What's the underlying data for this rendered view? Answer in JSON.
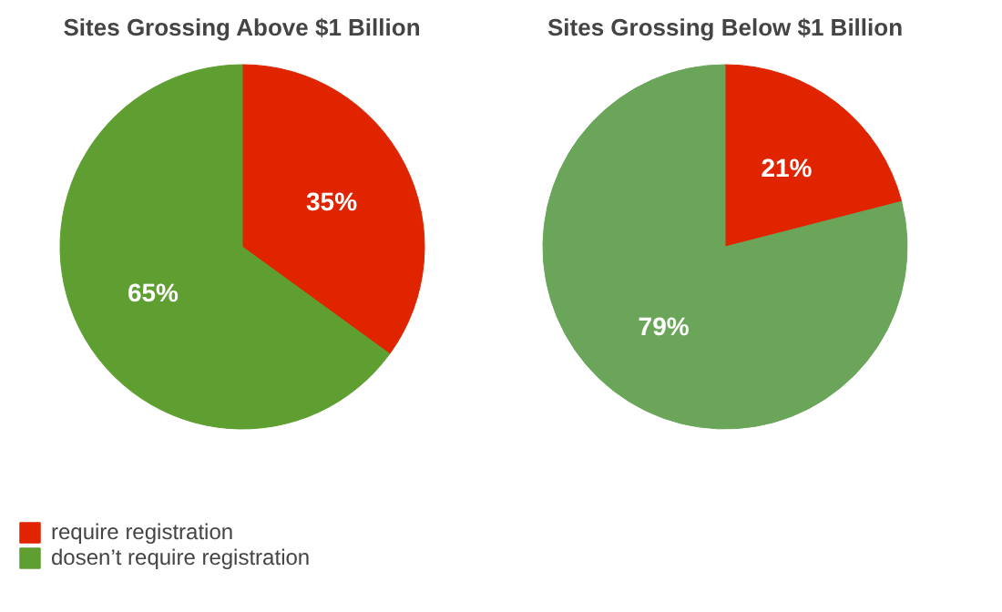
{
  "chart_data": [
    {
      "type": "pie",
      "title": "Sites Grossing Above $1 Billion",
      "categories": [
        "require registration",
        "dosen’t require registration"
      ],
      "values": [
        35,
        65
      ],
      "colors": [
        "#e02400",
        "#5f9e30"
      ],
      "value_labels": [
        "35%",
        "65%"
      ],
      "legend": "bottom left"
    },
    {
      "type": "pie",
      "title": "Sites Grossing Below $1 Billion",
      "categories": [
        null,
        null
      ],
      "values": [
        21,
        79
      ],
      "colors": [
        "#e02400",
        "#6aa55a"
      ],
      "value_labels": [
        "21%",
        "79%"
      ]
    }
  ]
}
